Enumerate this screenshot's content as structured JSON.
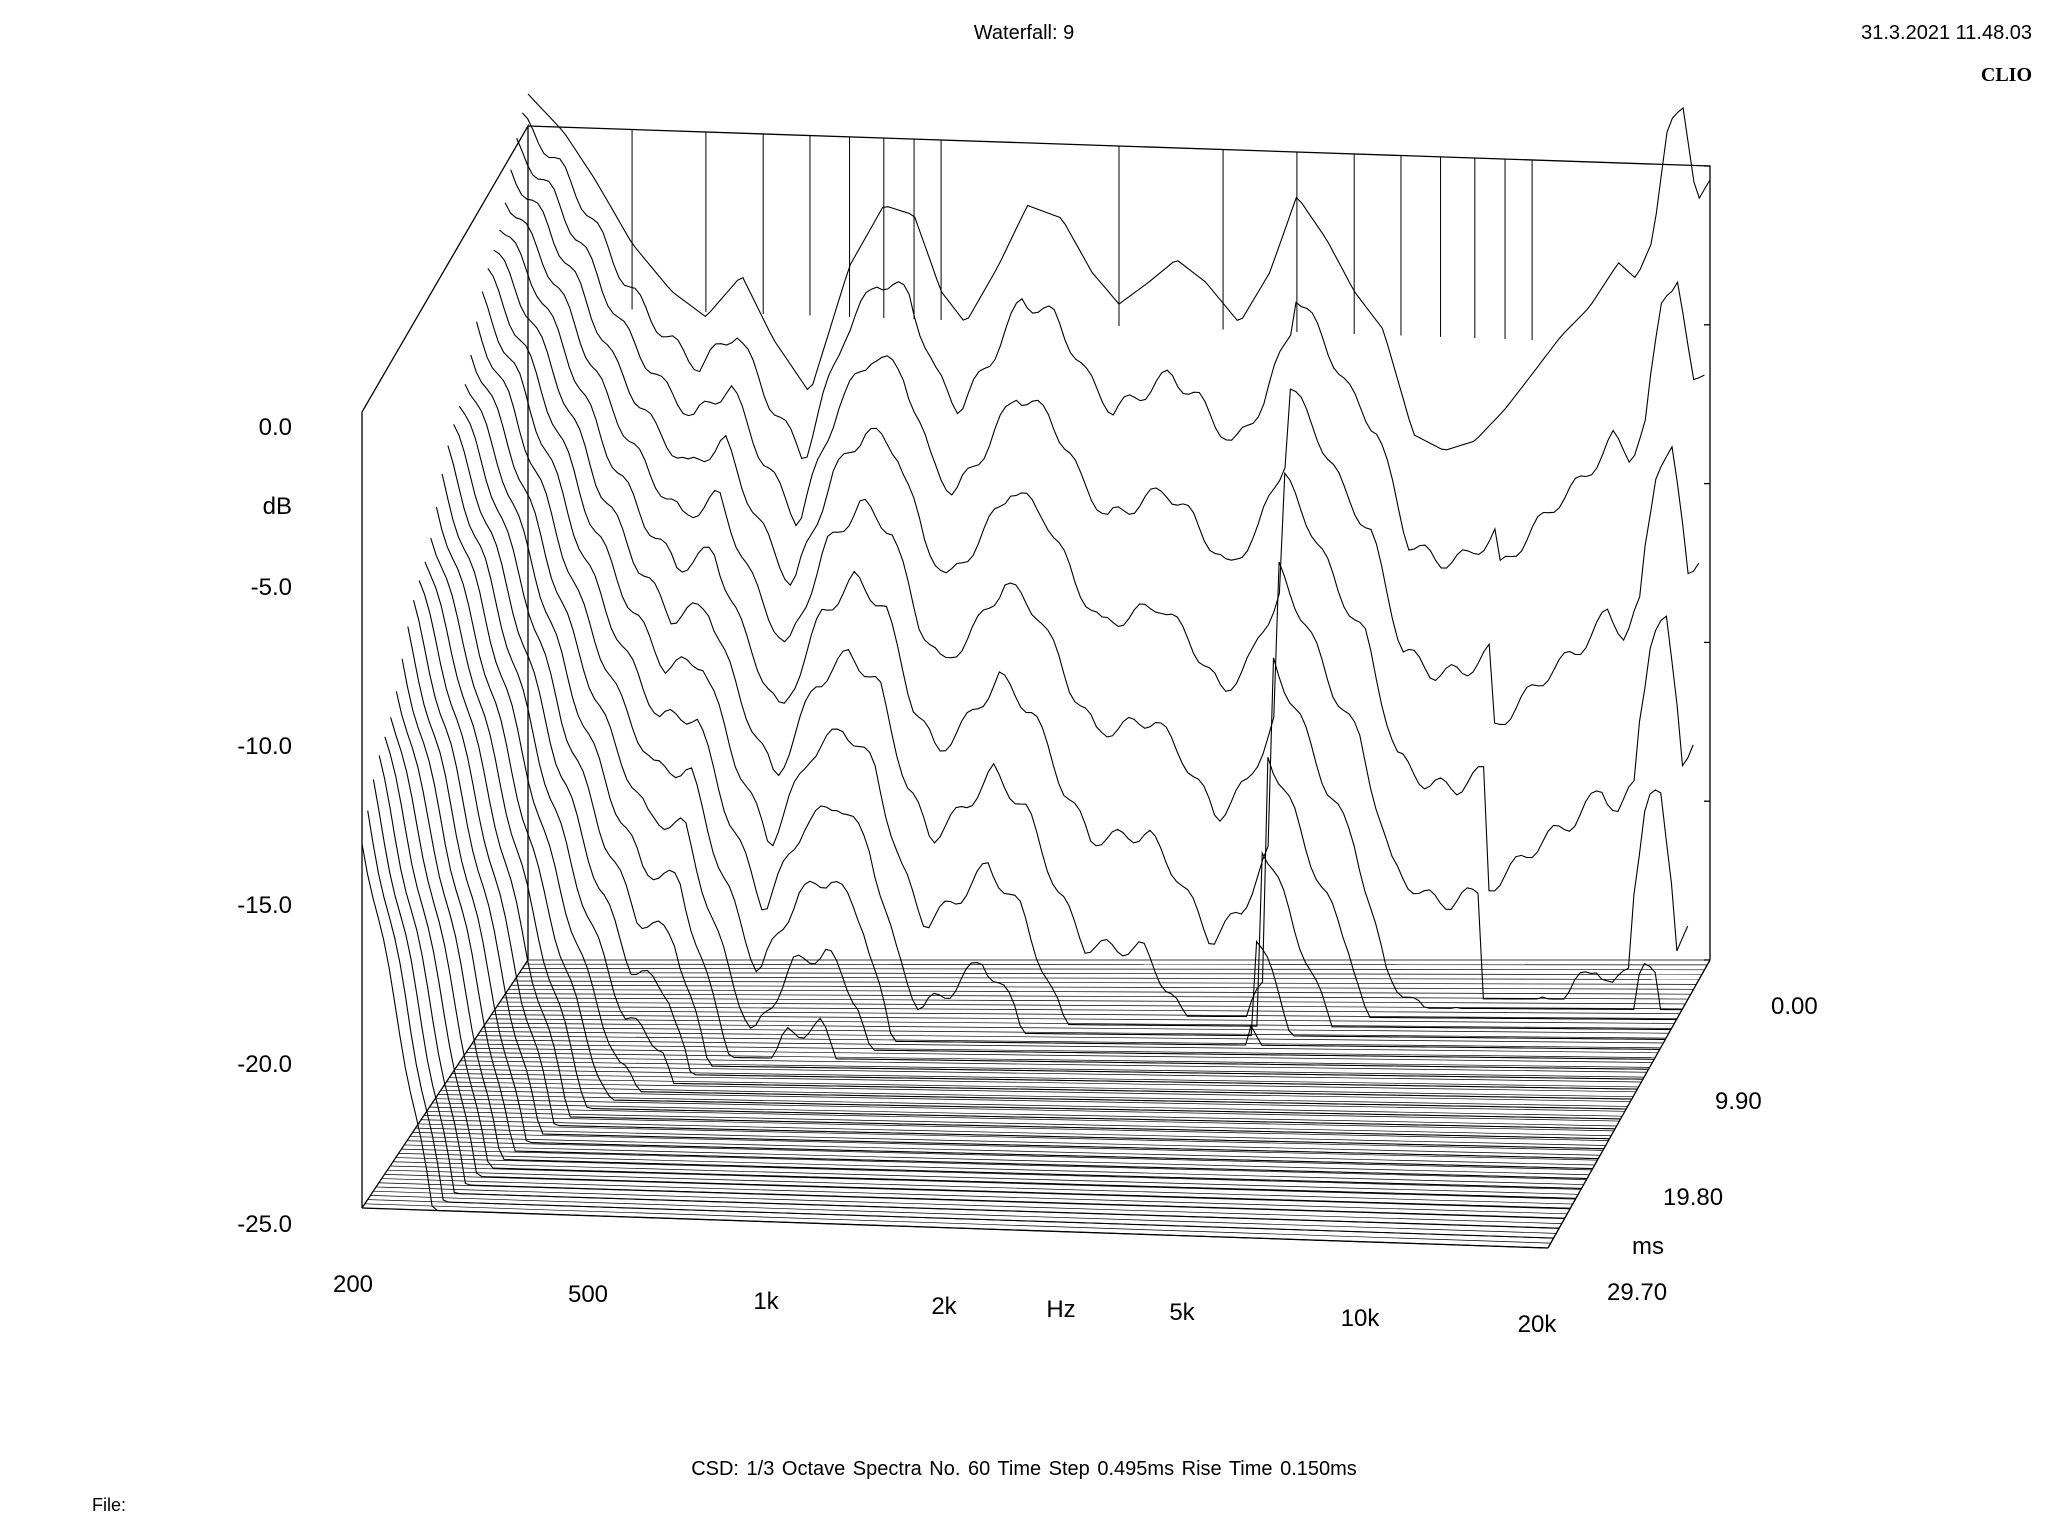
{
  "header": {
    "title": "Waterfall: 9",
    "timestamp": "31.3.2021 11.48.03",
    "brand": "CLIO"
  },
  "footer": {
    "text": "CSD:   1/3 Octave   Spectra No. 60   Time Step 0.495ms   Rise Time 0.150ms",
    "file_label": "File:"
  },
  "chart_data": {
    "type": "waterfall",
    "title": "Waterfall: 9",
    "method": "CSD",
    "smoothing": "1/3 Octave",
    "spectra_count": 60,
    "time_step_ms": 0.495,
    "rise_time_ms": 0.15,
    "x_axis": {
      "label": "Hz",
      "scale": "log",
      "range": [
        200,
        20000
      ],
      "ticks": [
        {
          "value": 200,
          "label": "200"
        },
        {
          "value": 500,
          "label": "500"
        },
        {
          "value": 1000,
          "label": "1k"
        },
        {
          "value": 2000,
          "label": "2k"
        },
        {
          "value": 5000,
          "label": "5k"
        },
        {
          "value": 10000,
          "label": "10k"
        },
        {
          "value": 20000,
          "label": "20k"
        }
      ]
    },
    "y_axis": {
      "label": "dB",
      "range": [
        -25,
        0
      ],
      "ticks": [
        {
          "value": 0,
          "label": "0.0"
        },
        {
          "value": -5,
          "label": "-5.0"
        },
        {
          "value": -10,
          "label": "-10.0"
        },
        {
          "value": -15,
          "label": "-15.0"
        },
        {
          "value": -20,
          "label": "-20.0"
        },
        {
          "value": -25,
          "label": "-25.0"
        }
      ]
    },
    "z_axis": {
      "label": "ms",
      "range": [
        0,
        29.7
      ],
      "ticks": [
        {
          "value": 0.0,
          "label": "0.00"
        },
        {
          "value": 9.9,
          "label": "9.90"
        },
        {
          "value": 19.8,
          "label": "19.80"
        },
        {
          "value": 29.7,
          "label": "29.70"
        }
      ]
    },
    "initial_response": {
      "freq_hz": [
        200,
        230,
        260,
        300,
        350,
        400,
        460,
        520,
        600,
        700,
        800,
        900,
        1000,
        1100,
        1250,
        1400,
        1600,
        1800,
        2000,
        2250,
        2500,
        2800,
        3200,
        3600,
        4000,
        4500,
        5000,
        5600,
        6300,
        7100,
        8000,
        9000,
        10000,
        11200,
        12500,
        14000,
        15000,
        16000,
        17000,
        18000,
        19000,
        20000
      ],
      "db": [
        2.2,
        1.0,
        -0.5,
        -2.5,
        -4.0,
        -4.8,
        -3.5,
        -5.5,
        -7.2,
        -3.2,
        -1.3,
        -1.6,
        -4.0,
        -5.0,
        -3.2,
        -1.3,
        -1.7,
        -3.4,
        -4.4,
        -3.7,
        -3.0,
        -3.7,
        -5.0,
        -3.4,
        -1.0,
        -2.4,
        -4.0,
        -5.2,
        -8.5,
        -9.0,
        -8.7,
        -7.7,
        -6.6,
        -5.4,
        -4.5,
        -3.1,
        -3.6,
        -2.4,
        1.3,
        1.8,
        -1.2,
        -0.5
      ]
    }
  }
}
